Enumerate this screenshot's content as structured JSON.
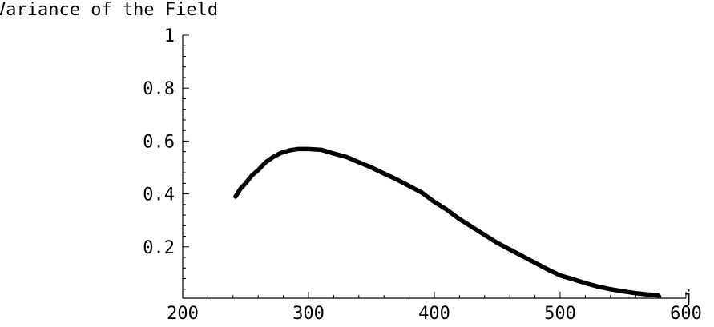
{
  "chart_data": {
    "type": "line",
    "title": "Variance of the Field",
    "xlabel": "j",
    "ylabel": "",
    "xlim": [
      200,
      600
    ],
    "ylim": [
      0,
      1
    ],
    "grid": false,
    "x_ticks": [
      200,
      300,
      400,
      500,
      600
    ],
    "x_tick_labels": [
      "200",
      "300",
      "400",
      "500",
      "600"
    ],
    "y_ticks": [
      0.2,
      0.4,
      0.6,
      0.8,
      1
    ],
    "y_tick_labels": [
      "0.2",
      "0.4",
      "0.6",
      "0.8",
      "1"
    ],
    "series": [
      {
        "x": [
          242,
          246,
          250,
          255,
          260,
          266,
          272,
          278,
          285,
          292,
          300,
          310,
          320,
          330,
          340,
          350,
          360,
          370,
          380,
          390,
          400,
          410,
          420,
          430,
          440,
          450,
          460,
          470,
          480,
          490,
          500,
          510,
          520,
          530,
          540,
          550,
          560,
          570,
          578
        ],
        "y": [
          0.39,
          0.42,
          0.44,
          0.47,
          0.49,
          0.52,
          0.54,
          0.555,
          0.565,
          0.57,
          0.57,
          0.567,
          0.553,
          0.54,
          0.52,
          0.5,
          0.477,
          0.455,
          0.43,
          0.405,
          0.37,
          0.34,
          0.305,
          0.275,
          0.245,
          0.215,
          0.19,
          0.165,
          0.14,
          0.115,
          0.092,
          0.078,
          0.063,
          0.05,
          0.04,
          0.032,
          0.025,
          0.02,
          0.016
        ]
      }
    ]
  }
}
